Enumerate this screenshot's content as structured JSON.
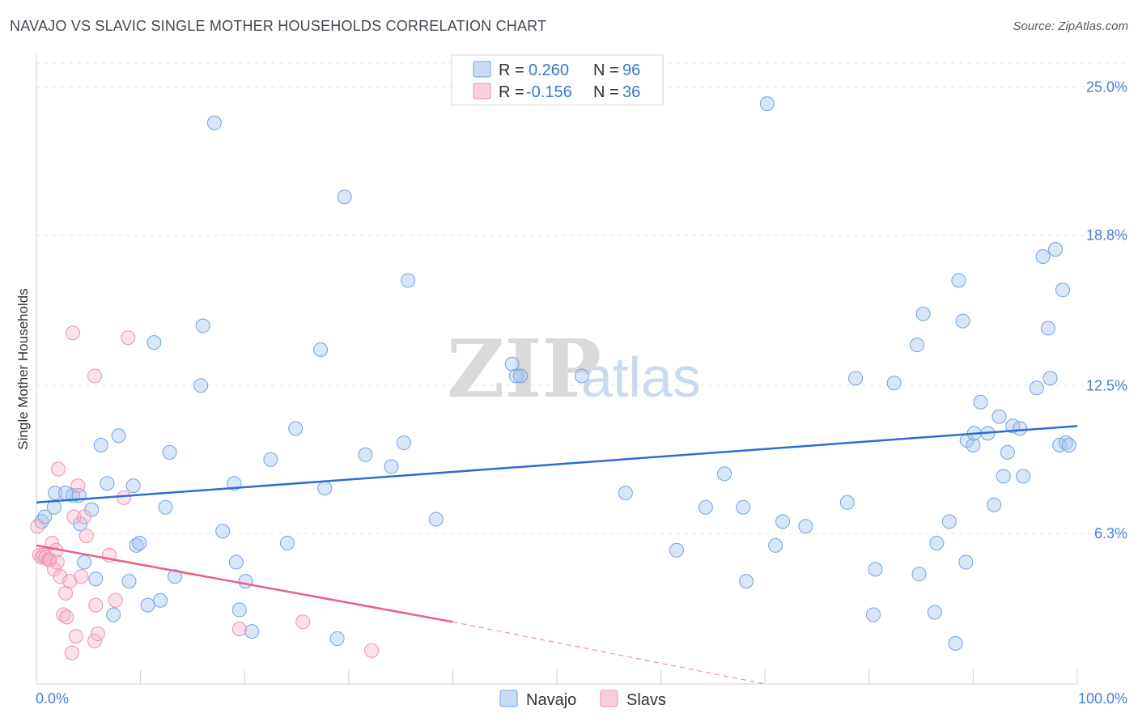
{
  "title": "NAVAJO VS SLAVIC SINGLE MOTHER HOUSEHOLDS CORRELATION CHART",
  "source": "Source: ZipAtlas.com",
  "watermark": {
    "part1": "ZIP",
    "part2": "atlas"
  },
  "colors": {
    "navajo": "#6fa3e6",
    "navajo_line": "#2a6fcf",
    "slavs": "#f08fb0",
    "slavs_line": "#e8608a",
    "tick": "#4a7fd4"
  },
  "legend": {
    "rows": [
      {
        "r_label": "R =",
        "r_value": "0.260",
        "n_label": "N =",
        "n_value": "96"
      },
      {
        "r_label": "R =",
        "r_value": "-0.156",
        "n_label": "N =",
        "n_value": "36"
      }
    ]
  },
  "bottom_legend": [
    "Navajo",
    "Slavs"
  ],
  "chart_data": {
    "type": "scatter",
    "title": "NAVAJO VS SLAVIC SINGLE MOTHER HOUSEHOLDS CORRELATION CHART",
    "xlabel": "",
    "ylabel": "Single Mother Households",
    "xlim": [
      0,
      100
    ],
    "ylim": [
      0,
      26
    ],
    "x_tick_labels": [
      "0.0%",
      "100.0%"
    ],
    "y_ticks": [
      6.3,
      12.5,
      18.8,
      25.0
    ],
    "y_tick_labels": [
      "6.3%",
      "12.5%",
      "18.8%",
      "25.0%"
    ],
    "grid": true,
    "legend_position": "top-center",
    "series": [
      {
        "name": "Navajo",
        "r": 0.26,
        "n": 96,
        "trend": {
          "x": [
            0,
            100
          ],
          "y": [
            7.6,
            10.8
          ]
        },
        "points": [
          [
            0.5,
            6.8
          ],
          [
            0.8,
            7.0
          ],
          [
            1.7,
            7.4
          ],
          [
            1.8,
            8.0
          ],
          [
            2.8,
            8.0
          ],
          [
            3.5,
            7.9
          ],
          [
            4.2,
            6.7
          ],
          [
            4.1,
            7.9
          ],
          [
            5.3,
            7.3
          ],
          [
            4.6,
            5.1
          ],
          [
            6.2,
            10.0
          ],
          [
            5.7,
            4.4
          ],
          [
            6.8,
            8.4
          ],
          [
            7.4,
            2.9
          ],
          [
            7.9,
            10.4
          ],
          [
            8.9,
            4.3
          ],
          [
            9.3,
            8.3
          ],
          [
            9.6,
            5.8
          ],
          [
            9.9,
            5.9
          ],
          [
            10.7,
            3.3
          ],
          [
            11.3,
            14.3
          ],
          [
            11.9,
            3.5
          ],
          [
            12.4,
            7.4
          ],
          [
            12.8,
            9.7
          ],
          [
            13.3,
            4.5
          ],
          [
            15.8,
            12.5
          ],
          [
            16.0,
            15.0
          ],
          [
            17.1,
            23.5
          ],
          [
            17.9,
            6.4
          ],
          [
            19.0,
            8.4
          ],
          [
            19.2,
            5.1
          ],
          [
            19.5,
            3.1
          ],
          [
            20.1,
            4.3
          ],
          [
            20.7,
            2.2
          ],
          [
            22.5,
            9.4
          ],
          [
            24.1,
            5.9
          ],
          [
            24.9,
            10.7
          ],
          [
            27.3,
            14.0
          ],
          [
            27.7,
            8.2
          ],
          [
            28.9,
            1.9
          ],
          [
            29.6,
            20.4
          ],
          [
            31.6,
            9.6
          ],
          [
            34.1,
            9.1
          ],
          [
            35.3,
            10.1
          ],
          [
            35.7,
            16.9
          ],
          [
            38.4,
            6.9
          ],
          [
            45.7,
            13.4
          ],
          [
            46.1,
            12.9
          ],
          [
            46.5,
            12.9
          ],
          [
            52.4,
            12.9
          ],
          [
            56.6,
            8.0
          ],
          [
            61.5,
            5.6
          ],
          [
            64.3,
            7.4
          ],
          [
            66.1,
            8.8
          ],
          [
            67.9,
            7.4
          ],
          [
            68.2,
            4.3
          ],
          [
            70.2,
            24.3
          ],
          [
            71.0,
            5.8
          ],
          [
            71.7,
            6.8
          ],
          [
            73.9,
            6.6
          ],
          [
            77.9,
            7.6
          ],
          [
            78.7,
            12.8
          ],
          [
            80.4,
            2.9
          ],
          [
            80.6,
            4.8
          ],
          [
            82.4,
            12.6
          ],
          [
            84.8,
            4.6
          ],
          [
            84.6,
            14.2
          ],
          [
            85.2,
            15.5
          ],
          [
            86.3,
            3.0
          ],
          [
            86.5,
            5.9
          ],
          [
            87.7,
            6.8
          ],
          [
            88.3,
            1.7
          ],
          [
            88.6,
            16.9
          ],
          [
            89.0,
            15.2
          ],
          [
            89.3,
            5.1
          ],
          [
            89.4,
            10.2
          ],
          [
            90.0,
            10.0
          ],
          [
            90.1,
            10.5
          ],
          [
            90.7,
            11.8
          ],
          [
            91.4,
            10.5
          ],
          [
            92.0,
            7.5
          ],
          [
            92.5,
            11.2
          ],
          [
            92.9,
            8.7
          ],
          [
            93.3,
            9.7
          ],
          [
            93.8,
            10.8
          ],
          [
            94.5,
            10.7
          ],
          [
            94.8,
            8.7
          ],
          [
            96.1,
            12.4
          ],
          [
            96.7,
            17.9
          ],
          [
            97.2,
            14.9
          ],
          [
            97.4,
            12.8
          ],
          [
            97.9,
            18.2
          ],
          [
            98.3,
            10.0
          ],
          [
            98.9,
            10.1
          ],
          [
            98.6,
            16.5
          ],
          [
            99.2,
            10.0
          ]
        ]
      },
      {
        "name": "Slavs",
        "r": -0.156,
        "n": 36,
        "trend": {
          "x": [
            0,
            40
          ],
          "y": [
            5.8,
            2.6
          ]
        },
        "trend_dashed": {
          "x": [
            40,
            70
          ],
          "y": [
            2.6,
            0.0
          ]
        },
        "points": [
          [
            0.1,
            6.6
          ],
          [
            0.3,
            5.4
          ],
          [
            0.5,
            5.3
          ],
          [
            0.7,
            5.4
          ],
          [
            0.9,
            5.3
          ],
          [
            1.2,
            5.2
          ],
          [
            1.3,
            5.2
          ],
          [
            1.5,
            5.9
          ],
          [
            1.7,
            4.8
          ],
          [
            1.9,
            5.6
          ],
          [
            2.0,
            5.1
          ],
          [
            2.1,
            9.0
          ],
          [
            2.3,
            4.5
          ],
          [
            2.6,
            2.9
          ],
          [
            2.8,
            3.8
          ],
          [
            2.9,
            2.8
          ],
          [
            3.2,
            4.3
          ],
          [
            3.4,
            1.3
          ],
          [
            3.6,
            7.0
          ],
          [
            3.8,
            2.0
          ],
          [
            3.5,
            14.7
          ],
          [
            4.0,
            8.3
          ],
          [
            4.3,
            4.5
          ],
          [
            4.6,
            7.0
          ],
          [
            4.8,
            6.2
          ],
          [
            5.6,
            1.8
          ],
          [
            5.7,
            3.3
          ],
          [
            5.9,
            2.1
          ],
          [
            5.6,
            12.9
          ],
          [
            7.0,
            5.4
          ],
          [
            7.6,
            3.5
          ],
          [
            8.4,
            7.8
          ],
          [
            8.8,
            14.5
          ],
          [
            19.5,
            2.3
          ],
          [
            25.6,
            2.6
          ],
          [
            32.2,
            1.4
          ]
        ]
      }
    ]
  }
}
